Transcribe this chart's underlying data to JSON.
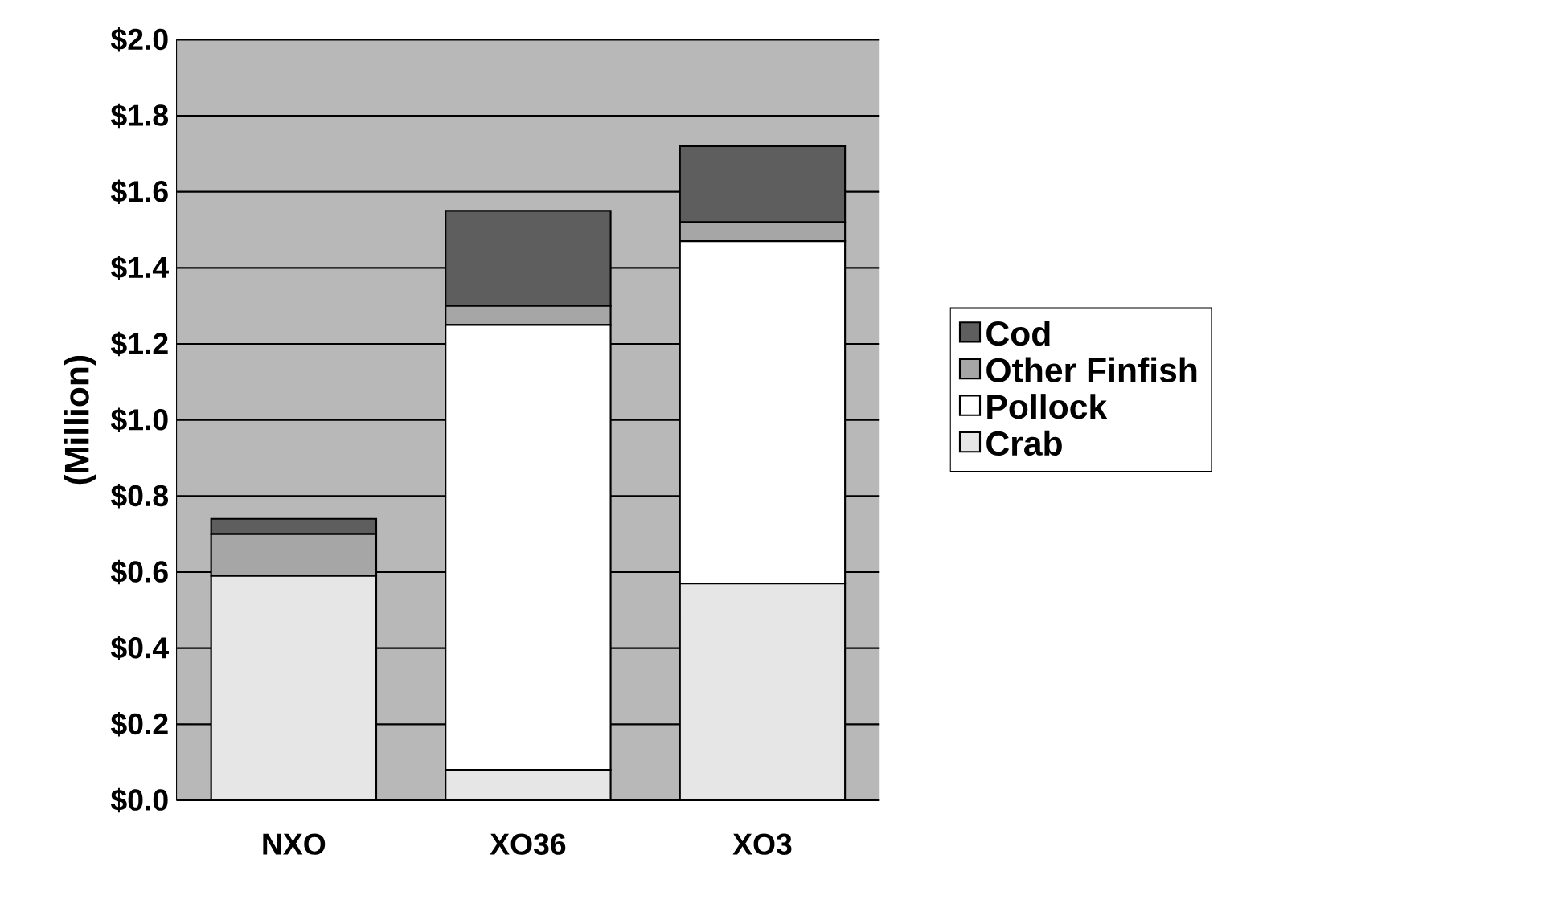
{
  "chart_data": {
    "type": "bar",
    "stacked": true,
    "ylabel": "(Million)",
    "categories": [
      "NXO",
      "XO36",
      "XO3"
    ],
    "series": [
      {
        "name": "Crab",
        "color": "#e6e6e6",
        "values": [
          0.59,
          0.08,
          0.57
        ]
      },
      {
        "name": "Pollock",
        "color": "#ffffff",
        "values": [
          0,
          1.17,
          0.9
        ]
      },
      {
        "name": "Other Finfish",
        "color": "#a6a6a6",
        "values": [
          0.11,
          0.05,
          0.05
        ]
      },
      {
        "name": "Cod",
        "color": "#5e5e5e",
        "values": [
          0.04,
          0.25,
          0.2
        ]
      }
    ],
    "ylim": [
      0,
      2.0
    ],
    "yticks": [
      {
        "value": 0,
        "label": "$0.0"
      },
      {
        "value": 0.2,
        "label": "$0.2"
      },
      {
        "value": 0.4,
        "label": "$0.4"
      },
      {
        "value": 0.6,
        "label": "$0.6"
      },
      {
        "value": 0.8,
        "label": "$0.8"
      },
      {
        "value": 1.0,
        "label": "$1.0"
      },
      {
        "value": 1.2,
        "label": "$1.2"
      },
      {
        "value": 1.4,
        "label": "$1.4"
      },
      {
        "value": 1.6,
        "label": "$1.6"
      },
      {
        "value": 1.8,
        "label": "$1.8"
      },
      {
        "value": 2.0,
        "label": "$2.0"
      }
    ],
    "grid": "y",
    "legend": "right"
  }
}
